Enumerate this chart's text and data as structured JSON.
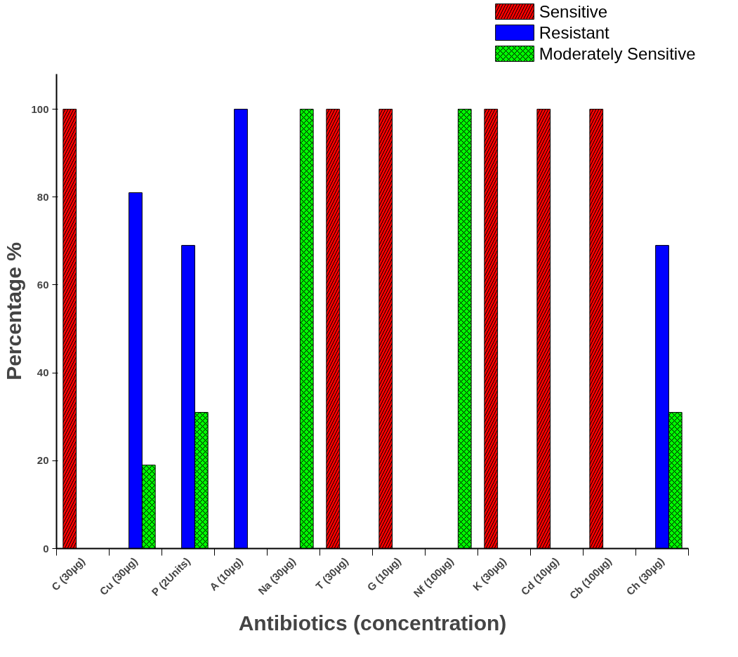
{
  "chart_data": {
    "type": "bar",
    "xlabel": "Antibiotics (concentration)",
    "ylabel": "Percentage %",
    "categories": [
      "C (30µg)",
      "Cu (30µg)",
      "P (2Units)",
      "A (10µg)",
      "Na (30µg)",
      "T (30µg)",
      "G (10µg)",
      "Nf (100µg)",
      "K (30µg)",
      "Cd (10µg)",
      "Cb (100µg)",
      "Ch (30µg)"
    ],
    "series": [
      {
        "name": "Sensitive",
        "color": "#ff0000",
        "values": [
          100,
          null,
          null,
          null,
          null,
          100,
          100,
          null,
          100,
          100,
          100,
          null
        ]
      },
      {
        "name": "Resistant",
        "color": "#0000ff",
        "values": [
          null,
          81,
          69,
          100,
          null,
          null,
          null,
          null,
          null,
          null,
          null,
          69
        ]
      },
      {
        "name": "Moderately Sensitive",
        "color": "#00ff00",
        "values": [
          null,
          19,
          31,
          null,
          100,
          null,
          null,
          100,
          null,
          null,
          null,
          31
        ]
      }
    ],
    "ylim": [
      0,
      108
    ],
    "yticks": [
      0,
      20,
      40,
      60,
      80,
      100
    ],
    "grid": false,
    "legend": "top right"
  }
}
